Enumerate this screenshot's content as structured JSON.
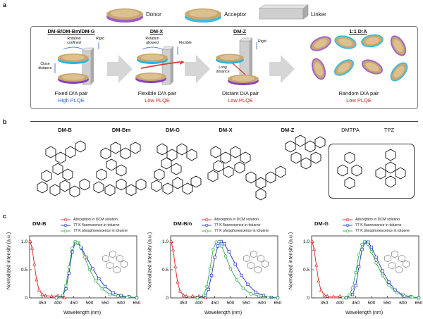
{
  "panel_a": {
    "label": "a",
    "legend": {
      "donor": "Donor",
      "acceptor": "Acceptor",
      "linker": "Linker"
    },
    "stages": [
      {
        "title": "DM-B/DM-Bm/DM-G",
        "name": "Fixed D/A pair",
        "plqe": "High PLQE",
        "plqe_color": "#1f66c2",
        "notes": [
          "Rotation confined",
          "Close distance",
          "Rigid"
        ]
      },
      {
        "title": "DM-X",
        "name": "Flexible D/A pair",
        "plqe": "Low PLQE",
        "plqe_color": "#c0241c",
        "notes": [
          "Rotation allowed",
          "Flexible"
        ]
      },
      {
        "title": "DM-Z",
        "name": "Distant D/A pair",
        "plqe": "Low PLQE",
        "plqe_color": "#c0241c",
        "notes": [
          "Long distance",
          "Rigid"
        ]
      },
      {
        "title": "1:1 D:A",
        "name": "Random D/A pair",
        "plqe": "Low PLQE",
        "plqe_color": "#c0241c",
        "notes": []
      }
    ],
    "colors": {
      "donor": "#8a3fc0",
      "acceptor": "#2ab5dc",
      "disk_top": "#c9a870",
      "arrow": "#d93a2b"
    }
  },
  "panel_b": {
    "label": "b",
    "molecules": [
      "DM-B",
      "DM-Bm",
      "DM-G",
      "DM-X",
      "DM-Z",
      "DMTPA",
      "TPZ"
    ]
  },
  "panel_c": {
    "label": "c",
    "legend": [
      "Absorption in DCM solution",
      "77 K fluorescence in toluene",
      "77 K phosphorescence in toluene"
    ],
    "colors": [
      "#e02020",
      "#1e2fbf",
      "#29a84a"
    ]
  },
  "chart_data": [
    {
      "type": "line",
      "title": "DM-B",
      "xlabel": "Wavelength (nm)",
      "ylabel": "Normalized intensity (a.u.)",
      "xlim": [
        310,
        650
      ],
      "ylim": [
        0,
        1.1
      ],
      "xticks": [
        350,
        400,
        450,
        500,
        550,
        600,
        650
      ],
      "yticks": [
        "0",
        "0.5",
        "1.0"
      ],
      "series": [
        {
          "name": "Absorption in DCM solution",
          "x": [
            312,
            318,
            325,
            332,
            340,
            350,
            360,
            380,
            400,
            420
          ],
          "y": [
            1.0,
            0.88,
            0.6,
            0.32,
            0.14,
            0.06,
            0.04,
            0.03,
            0.04,
            0.0
          ]
        },
        {
          "name": "77 K fluorescence in toluene",
          "x": [
            395,
            415,
            425,
            435,
            445,
            455,
            465,
            475,
            490,
            510,
            530,
            550,
            575,
            600,
            625,
            650
          ],
          "y": [
            0.0,
            0.04,
            0.16,
            0.44,
            0.82,
            0.98,
            0.97,
            0.88,
            0.72,
            0.52,
            0.34,
            0.2,
            0.09,
            0.04,
            0.02,
            0.0
          ]
        },
        {
          "name": "77 K phosphorescence in toluene",
          "x": [
            395,
            415,
            425,
            435,
            445,
            455,
            462,
            472,
            485,
            500,
            520,
            540,
            565,
            590,
            620,
            650
          ],
          "y": [
            0.0,
            0.05,
            0.22,
            0.55,
            0.88,
            1.0,
            0.98,
            0.9,
            0.72,
            0.5,
            0.3,
            0.16,
            0.06,
            0.03,
            0.01,
            0.0
          ]
        }
      ]
    },
    {
      "type": "line",
      "title": "DM-Bm",
      "xlabel": "Wavelength (nm)",
      "ylabel": "Normalized intensity (a.u.)",
      "xlim": [
        310,
        650
      ],
      "ylim": [
        0,
        1.1
      ],
      "xticks": [
        350,
        400,
        450,
        500,
        550,
        600,
        650
      ],
      "yticks": [
        "0",
        "0.5",
        "1.0"
      ],
      "series": [
        {
          "name": "Absorption in DCM solution",
          "x": [
            312,
            318,
            325,
            332,
            340,
            350,
            360,
            380,
            400,
            420
          ],
          "y": [
            1.0,
            0.85,
            0.55,
            0.28,
            0.12,
            0.05,
            0.03,
            0.03,
            0.03,
            0.0
          ]
        },
        {
          "name": "77 K fluorescence in toluene",
          "x": [
            395,
            420,
            430,
            440,
            450,
            460,
            470,
            480,
            495,
            515,
            535,
            555,
            580,
            605,
            630,
            650
          ],
          "y": [
            0.0,
            0.04,
            0.15,
            0.4,
            0.72,
            0.92,
            1.0,
            0.96,
            0.82,
            0.6,
            0.4,
            0.24,
            0.1,
            0.04,
            0.01,
            0.0
          ]
        },
        {
          "name": "77 K phosphorescence in toluene",
          "x": [
            395,
            415,
            425,
            435,
            445,
            455,
            463,
            472,
            485,
            500,
            520,
            540,
            565,
            590,
            620,
            650
          ],
          "y": [
            0.0,
            0.05,
            0.2,
            0.52,
            0.86,
            0.99,
            1.0,
            0.92,
            0.74,
            0.52,
            0.32,
            0.17,
            0.07,
            0.03,
            0.01,
            0.0
          ]
        }
      ]
    },
    {
      "type": "line",
      "title": "DM-G",
      "xlabel": "Wavelength (nm)",
      "ylabel": "Normalized intensity (a.u.)",
      "xlim": [
        310,
        650
      ],
      "ylim": [
        0,
        1.1
      ],
      "xticks": [
        350,
        400,
        450,
        500,
        550,
        600,
        650
      ],
      "yticks": [
        "0",
        "0.5",
        "1.0"
      ],
      "series": [
        {
          "name": "Absorption in DCM solution",
          "x": [
            312,
            318,
            325,
            332,
            340,
            350,
            360,
            380,
            400,
            420
          ],
          "y": [
            1.0,
            0.86,
            0.58,
            0.3,
            0.13,
            0.05,
            0.03,
            0.02,
            0.03,
            0.0
          ]
        },
        {
          "name": "77 K fluorescence in toluene",
          "x": [
            420,
            440,
            450,
            460,
            470,
            480,
            490,
            500,
            515,
            535,
            555,
            575,
            600,
            625,
            650
          ],
          "y": [
            0.0,
            0.06,
            0.22,
            0.55,
            0.86,
            0.99,
            0.99,
            0.9,
            0.72,
            0.48,
            0.28,
            0.14,
            0.05,
            0.02,
            0.0
          ]
        },
        {
          "name": "77 K phosphorescence in toluene",
          "x": [
            410,
            430,
            440,
            450,
            460,
            470,
            478,
            488,
            500,
            515,
            535,
            555,
            580,
            605,
            630,
            650
          ],
          "y": [
            0.0,
            0.05,
            0.18,
            0.45,
            0.76,
            0.95,
            1.0,
            0.95,
            0.82,
            0.62,
            0.4,
            0.22,
            0.09,
            0.03,
            0.01,
            0.0
          ]
        }
      ]
    }
  ]
}
